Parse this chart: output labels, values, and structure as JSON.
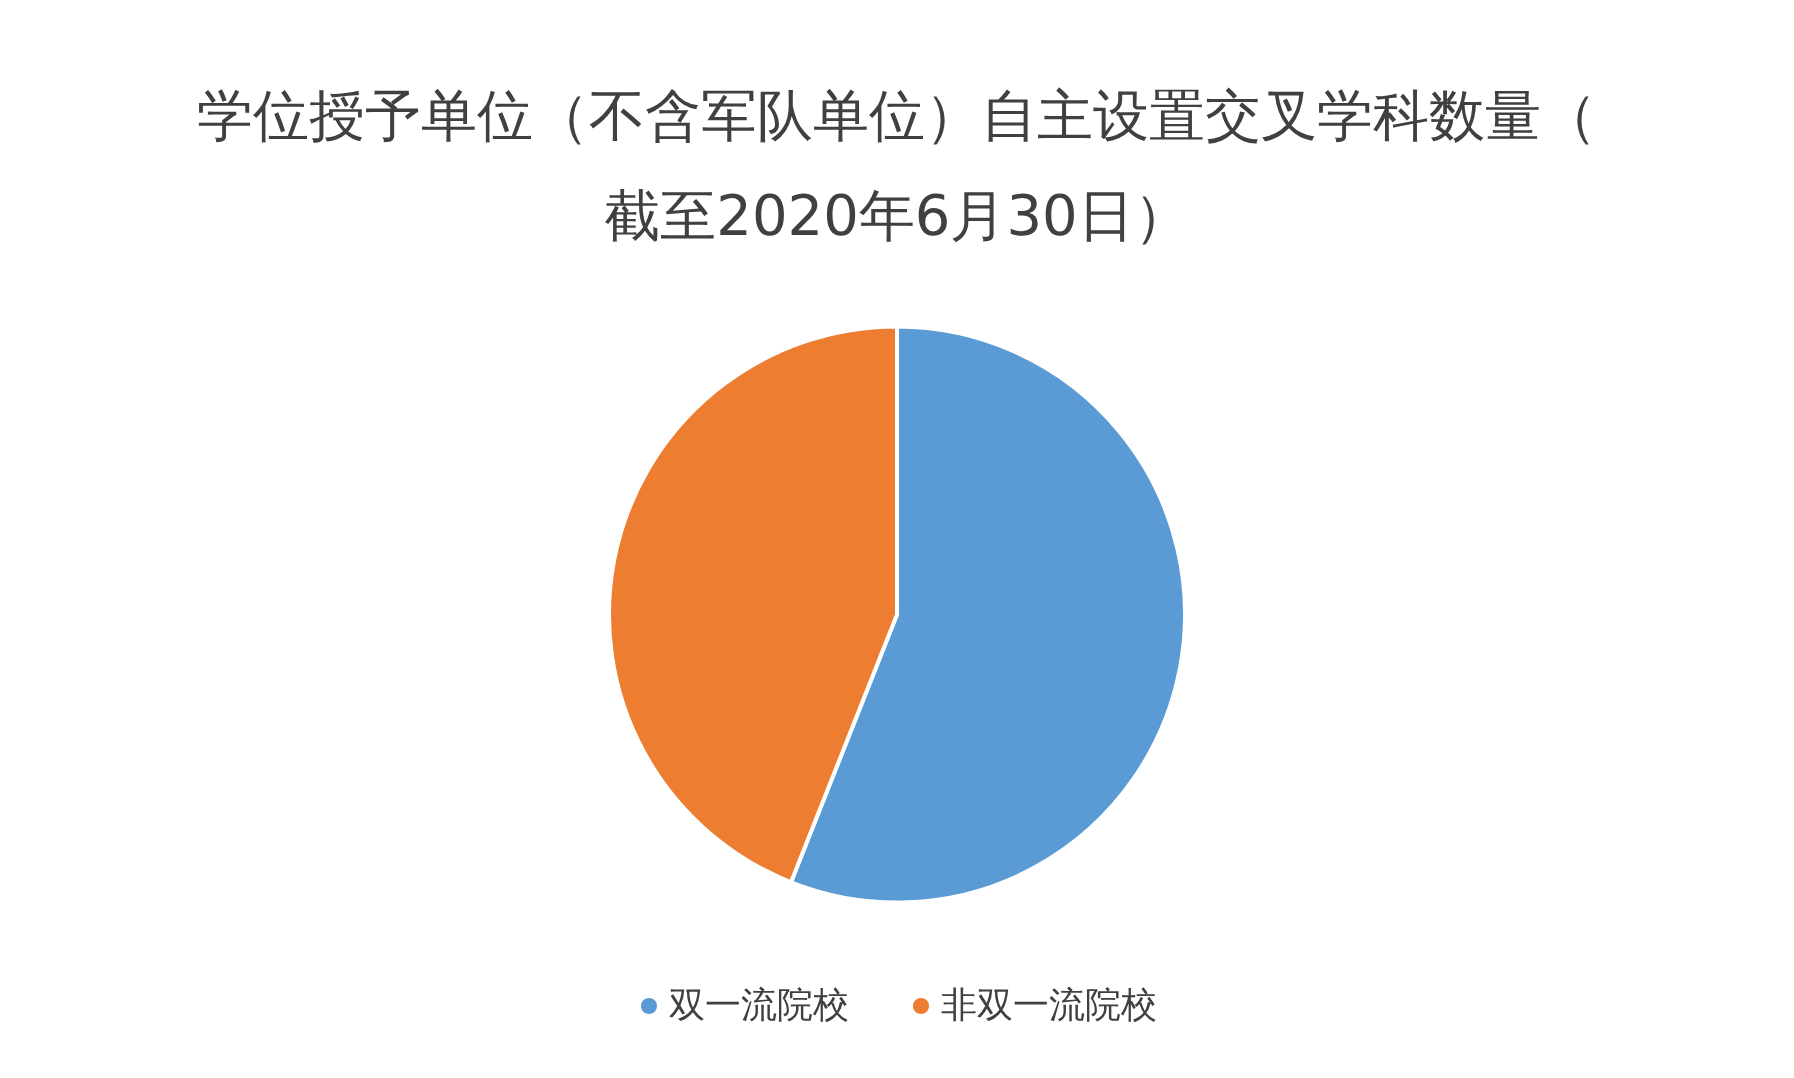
{
  "chart_data": {
    "type": "pie",
    "title": "学位授予单位（不含军队单位）自主设置交叉学科数量（截至2020年6月30日）",
    "categories": [
      "双一流院校",
      "非双一流院校"
    ],
    "values": [
      56,
      44
    ],
    "colors": [
      "#5b9bd5",
      "#ed7d31"
    ],
    "legend": "bottom"
  }
}
